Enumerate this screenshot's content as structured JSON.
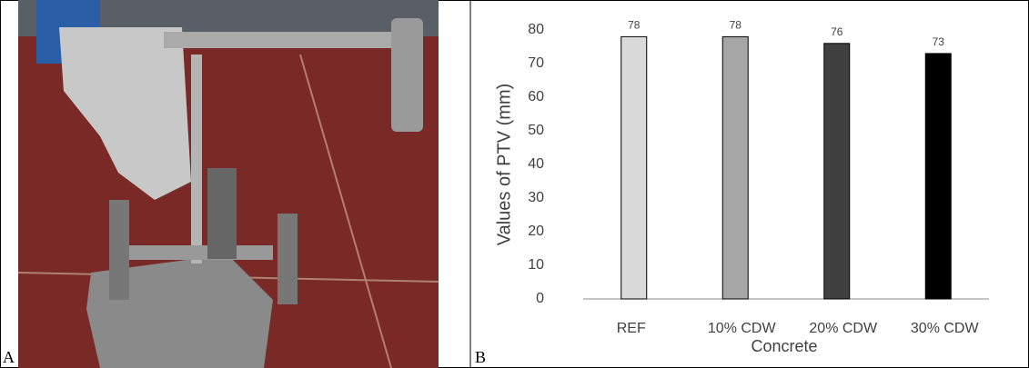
{
  "panels": {
    "a": "A",
    "b": "B"
  },
  "chart_data": {
    "type": "bar",
    "x_label": "Concrete",
    "y_label": "Values of PTV (mm)",
    "categories": [
      "REF",
      "10% CDW",
      "20% CDW",
      "30% CDW"
    ],
    "values": [
      78,
      78,
      76,
      73
    ],
    "colors": [
      "#d9d9d9",
      "#a6a6a6",
      "#404040",
      "#000000"
    ],
    "ylim": [
      0,
      80
    ],
    "yticks": [
      0,
      10,
      20,
      30,
      40,
      50,
      60,
      70,
      80
    ],
    "grid": false
  }
}
